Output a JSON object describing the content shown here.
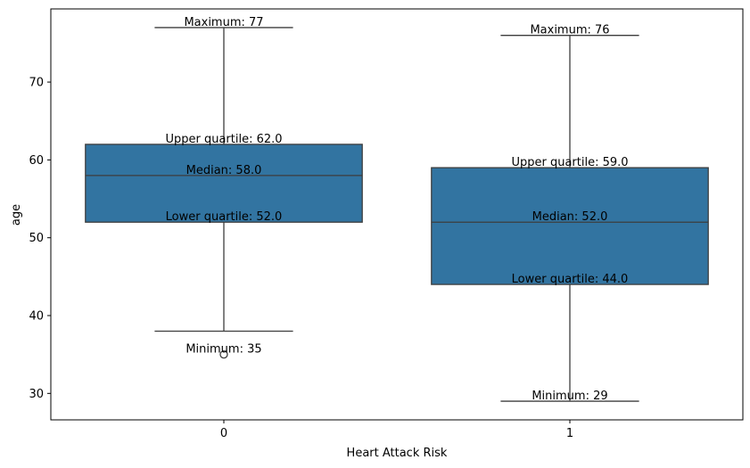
{
  "chart_data": {
    "type": "box",
    "title": "",
    "xlabel": "Heart Attack Risk",
    "ylabel": "age",
    "categories": [
      "0",
      "1"
    ],
    "ylim": [
      26.6,
      79.4
    ],
    "yticks": [
      30,
      40,
      50,
      60,
      70
    ],
    "grid": false,
    "box_color": "#3274a1",
    "line_color": "#3d3d3d",
    "boxes": [
      {
        "category": "0",
        "whisker_low": 38,
        "q1": 52.0,
        "median": 58.0,
        "q3": 62.0,
        "whisker_high": 77,
        "outliers": [
          35
        ],
        "annotations": {
          "max": "Maximum: 77",
          "q3": "Upper quartile: 62.0",
          "median": "Median: 58.0",
          "q1": "Lower quartile: 52.0",
          "min": "Minimum: 35"
        }
      },
      {
        "category": "1",
        "whisker_low": 29,
        "q1": 44.0,
        "median": 52.0,
        "q3": 59.0,
        "whisker_high": 76,
        "outliers": [],
        "annotations": {
          "max": "Maximum: 76",
          "q3": "Upper quartile: 59.0",
          "median": "Median: 52.0",
          "q1": "Lower quartile: 44.0",
          "min": "Minimum: 29"
        }
      }
    ]
  }
}
